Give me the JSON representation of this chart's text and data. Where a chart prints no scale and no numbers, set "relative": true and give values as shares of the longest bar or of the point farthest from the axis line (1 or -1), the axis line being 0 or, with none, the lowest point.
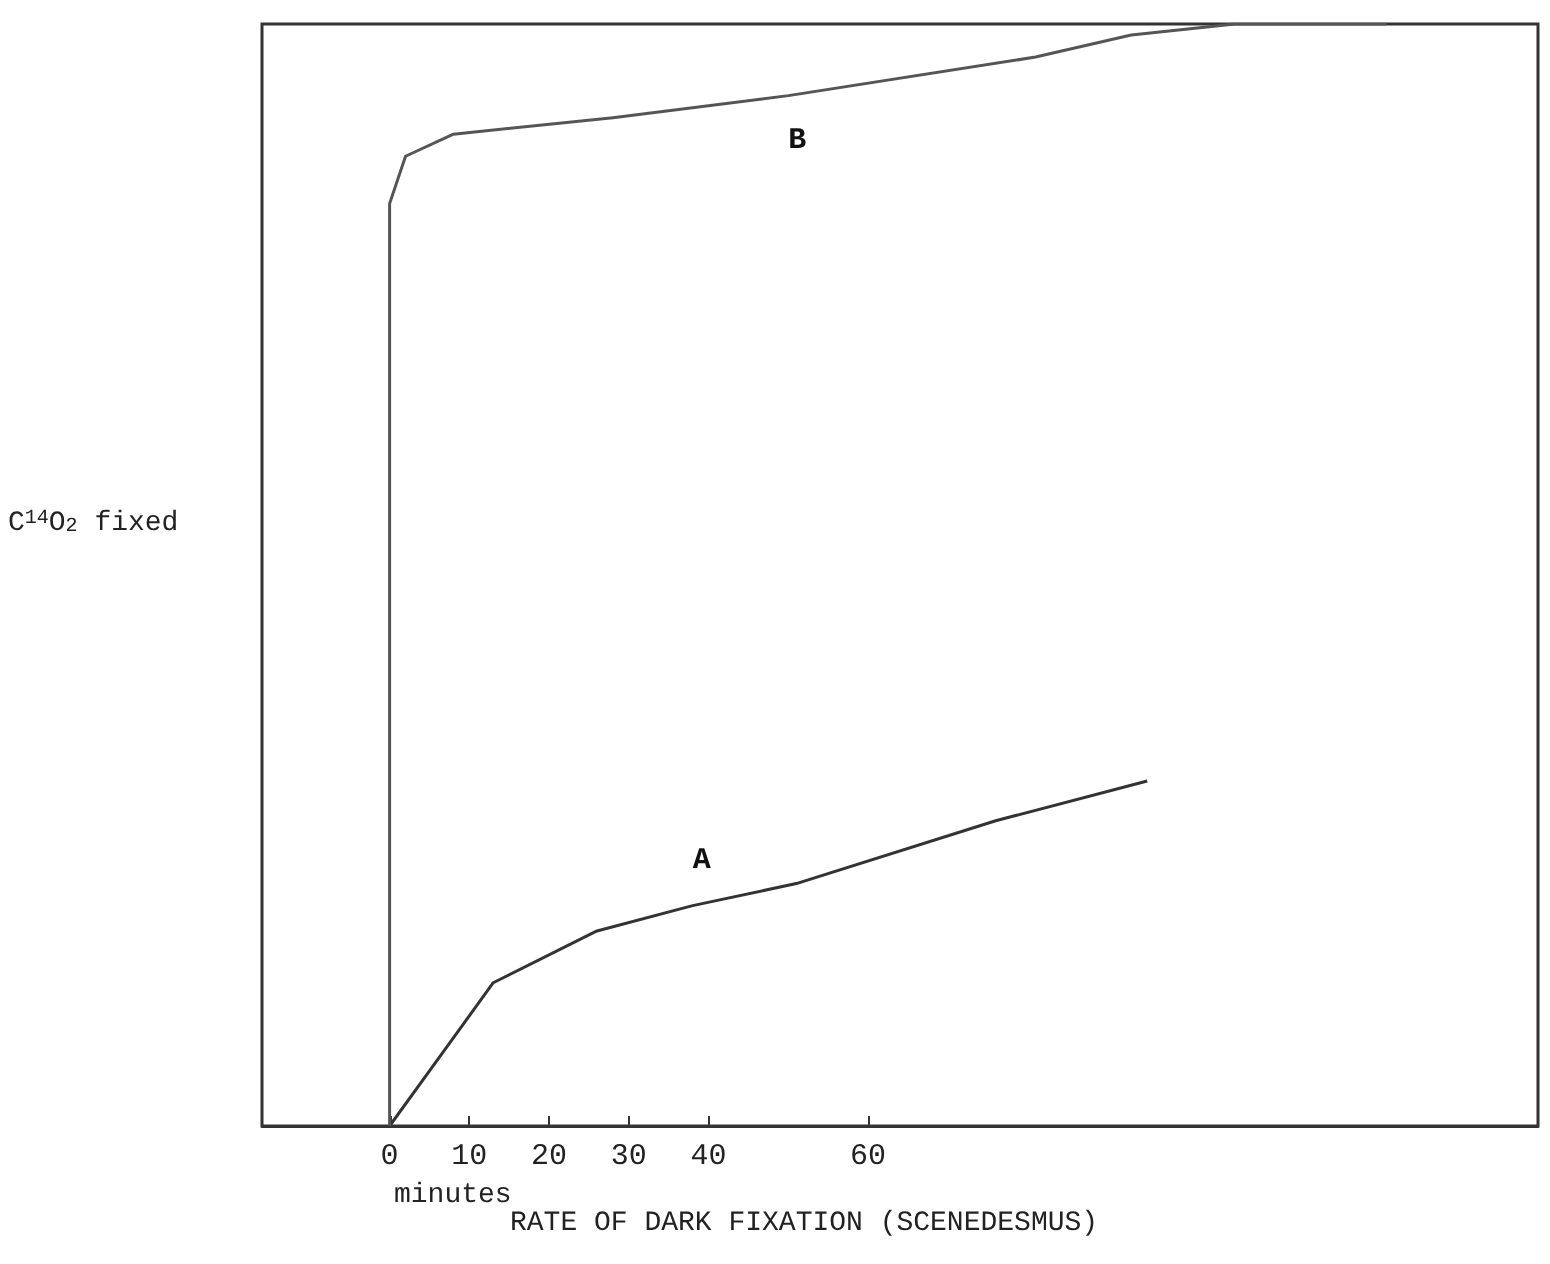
{
  "chart_data": {
    "type": "line",
    "title": "RATE OF DARK FIXATION (SCENEDESMUS)",
    "xlabel": "minutes",
    "ylabel": "C$^{14}$O$_{2}$ fixed",
    "relative": true,
    "xlim": [
      -16,
      144
    ],
    "xticks": [
      0,
      10,
      20,
      30,
      40,
      60
    ],
    "series": [
      {
        "name": "A",
        "color": "#333333",
        "x": [
          0,
          6,
          13,
          26,
          38,
          51,
          76,
          95
        ],
        "values": [
          0,
          0.06,
          0.13,
          0.177,
          0.2,
          0.22,
          0.277,
          0.313
        ]
      },
      {
        "name": "B",
        "color": "#555555",
        "x": [
          0,
          0,
          2,
          8,
          28,
          50,
          81,
          93,
          106,
          125
        ],
        "values": [
          0,
          0.837,
          0.88,
          0.9,
          0.915,
          0.935,
          0.97,
          0.99,
          1,
          1
        ]
      }
    ],
    "grid": false,
    "marker": "none",
    "line_style": "solid",
    "legend": false
  }
}
